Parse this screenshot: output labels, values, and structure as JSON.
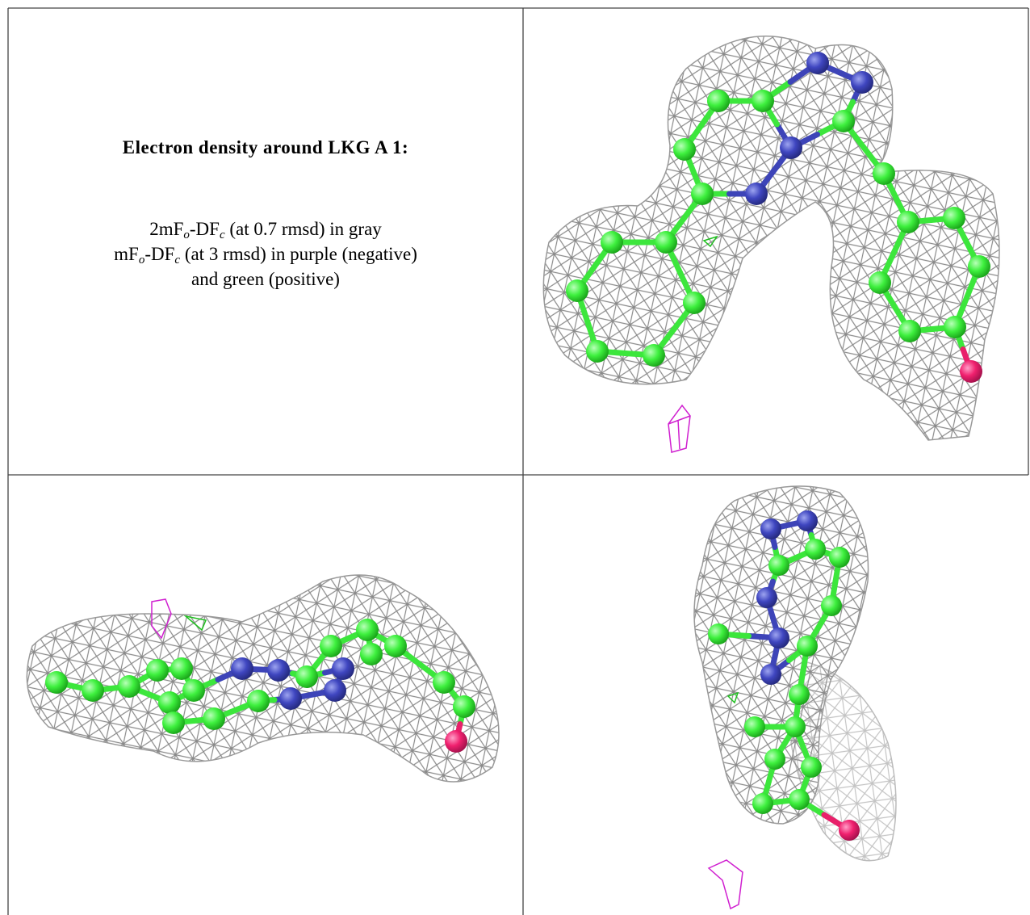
{
  "caption": {
    "title": "Electron density around LKG A 1:",
    "lines": [
      [
        {
          "text": "2mF"
        },
        {
          "sub": "o"
        },
        {
          "text": "-DF"
        },
        {
          "sub": "c"
        },
        {
          "text": " (at 0.7 rmsd) in gray"
        }
      ],
      [
        {
          "text": "mF"
        },
        {
          "sub": "o"
        },
        {
          "text": "-DF"
        },
        {
          "sub": "c"
        },
        {
          "text": " (at 3 rmsd) in purple (negative)"
        }
      ],
      [
        {
          "text": "and green (positive)"
        }
      ]
    ]
  }
}
